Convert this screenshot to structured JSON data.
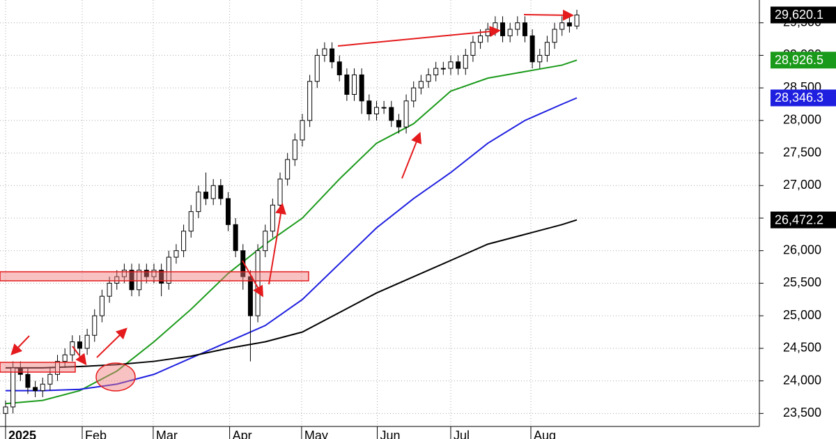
{
  "chart_data": {
    "type": "candlestick",
    "open": [
      23500,
      23600,
      24200,
      24100,
      23900,
      23850,
      23950,
      24100,
      24300,
      24400,
      24600,
      24500,
      24700,
      25000,
      25300,
      25500,
      25600,
      25700,
      25400,
      25700,
      25600,
      25700,
      25500,
      25900,
      26000,
      26300,
      26600,
      26900,
      26800,
      27000,
      26800,
      26400,
      26000,
      25600,
      25000,
      26000,
      26300,
      26700,
      27100,
      27400,
      27700,
      28000,
      28600,
      29000,
      29100,
      28900,
      28700,
      28400,
      28700,
      28300,
      28100,
      28200,
      28200,
      28000,
      27900,
      28300,
      28500,
      28600,
      28700,
      28800,
      28800,
      28900,
      28800,
      29000,
      29200,
      29300,
      29400,
      29500,
      29300,
      29400,
      29500,
      29300,
      28900,
      29000,
      29200,
      29400,
      29500,
      29450
    ],
    "high": [
      23700,
      24300,
      24300,
      24200,
      24000,
      24050,
      24200,
      24400,
      24500,
      24700,
      24700,
      24800,
      25100,
      25400,
      25600,
      25700,
      25800,
      25800,
      25800,
      25800,
      25800,
      25800,
      26000,
      26100,
      26400,
      26700,
      27000,
      27200,
      27100,
      27100,
      26900,
      26500,
      26100,
      25700,
      26100,
      26400,
      26800,
      27200,
      27500,
      27800,
      28100,
      28700,
      29100,
      29200,
      29200,
      29000,
      28800,
      28800,
      28800,
      28400,
      28300,
      28300,
      28300,
      28100,
      28400,
      28600,
      28700,
      28800,
      28900,
      28900,
      29000,
      29000,
      29100,
      29300,
      29400,
      29500,
      29600,
      29600,
      29500,
      29600,
      29600,
      29400,
      29100,
      29300,
      29500,
      29600,
      29600,
      29700
    ],
    "low": [
      23300,
      23500,
      24000,
      23800,
      23750,
      23750,
      23850,
      24000,
      24200,
      24300,
      24400,
      24400,
      24600,
      24900,
      25200,
      25400,
      25500,
      25300,
      25300,
      25500,
      25500,
      25300,
      25400,
      25800,
      25900,
      26200,
      26500,
      26700,
      26700,
      26700,
      26300,
      25900,
      25400,
      24300,
      24900,
      25900,
      26200,
      26600,
      27000,
      27300,
      27600,
      27900,
      28500,
      28900,
      28800,
      28600,
      28300,
      28300,
      28100,
      28000,
      28000,
      28100,
      27900,
      27800,
      27800,
      28200,
      28400,
      28500,
      28600,
      28700,
      28700,
      28700,
      28700,
      28900,
      29100,
      29200,
      29300,
      29200,
      29200,
      29300,
      29200,
      28800,
      28800,
      28900,
      29100,
      29300,
      29350,
      29400
    ],
    "close": [
      23600,
      24200,
      24100,
      23900,
      23850,
      23950,
      24100,
      24300,
      24400,
      24600,
      24500,
      24700,
      25000,
      25300,
      25500,
      25600,
      25700,
      25400,
      25700,
      25600,
      25700,
      25500,
      25900,
      26000,
      26300,
      26600,
      26900,
      26800,
      27000,
      26800,
      26400,
      26000,
      25600,
      25000,
      26000,
      26300,
      26700,
      27100,
      27400,
      27700,
      28000,
      28600,
      29000,
      29100,
      28900,
      28700,
      28400,
      28700,
      28300,
      28100,
      28200,
      28200,
      28000,
      27900,
      28300,
      28500,
      28600,
      28700,
      28800,
      28800,
      28900,
      28800,
      29000,
      29200,
      29300,
      29400,
      29500,
      29300,
      29400,
      29500,
      29300,
      28900,
      29000,
      29200,
      29400,
      29500,
      29450,
      29620.1
    ],
    "up_color": "#ffffff",
    "down_color": "#000000",
    "series": [
      {
        "color": "#1a9a1a",
        "x": [
          0,
          5,
          10,
          15,
          20,
          25,
          30,
          35,
          40,
          45,
          50,
          55,
          60,
          65,
          70,
          75,
          77
        ],
        "values": [
          23650,
          23700,
          23850,
          24150,
          24600,
          25100,
          25650,
          26100,
          26500,
          27100,
          27650,
          27950,
          28450,
          28650,
          28750,
          28850,
          28926.5
        ]
      },
      {
        "color": "#1f1fe0",
        "x": [
          0,
          5,
          10,
          15,
          20,
          25,
          30,
          35,
          40,
          45,
          50,
          55,
          60,
          65,
          70,
          75,
          77
        ],
        "values": [
          23850,
          23850,
          23870,
          23950,
          24100,
          24350,
          24600,
          24850,
          25250,
          25800,
          26350,
          26800,
          27200,
          27650,
          28000,
          28250,
          28346.3
        ]
      },
      {
        "color": "#000000",
        "x": [
          0,
          5,
          10,
          15,
          20,
          25,
          30,
          35,
          40,
          45,
          50,
          55,
          60,
          65,
          70,
          75,
          77
        ],
        "values": [
          24200,
          24200,
          24220,
          24250,
          24300,
          24380,
          24500,
          24600,
          24750,
          25050,
          25350,
          25600,
          25850,
          26100,
          26250,
          26400,
          26472.2
        ]
      }
    ],
    "price_labels": [
      {
        "value": 29620.1,
        "label": "29,620.1",
        "color": "#000000"
      },
      {
        "value": 28926.5,
        "label": "28,926.5",
        "color": "#1a9a1a"
      },
      {
        "value": 28346.3,
        "label": "28,346.3",
        "color": "#1f1fe0"
      },
      {
        "value": 26472.2,
        "label": "26,472.2",
        "color": "#000000"
      }
    ],
    "xlim": [
      -0.75,
      101.6
    ],
    "xticks": [
      {
        "value": 0,
        "label": "2025"
      },
      {
        "value": 10.33,
        "label": "Feb"
      },
      {
        "value": 19.9,
        "label": "Mar"
      },
      {
        "value": 30.2,
        "label": "Apr"
      },
      {
        "value": 39.9,
        "label": "May"
      },
      {
        "value": 50.1,
        "label": "Jun"
      },
      {
        "value": 60,
        "label": "Jul"
      },
      {
        "value": 70.8,
        "label": "Aug"
      }
    ],
    "ylim": [
      23300,
      29850
    ],
    "yticks": [
      {
        "value": 23500,
        "label": "23,500"
      },
      {
        "value": 24000,
        "label": "24,000"
      },
      {
        "value": 24500,
        "label": "24,500"
      },
      {
        "value": 25000,
        "label": "25,000"
      },
      {
        "value": 25500,
        "label": "25,500"
      },
      {
        "value": 26000,
        "label": "26,000"
      },
      {
        "value": 26500,
        "label": "26,500"
      },
      {
        "value": 27000,
        "label": "27,000"
      },
      {
        "value": 27500,
        "label": "27,500"
      },
      {
        "value": 28000,
        "label": "28,000"
      },
      {
        "value": 28500,
        "label": "28,500"
      },
      {
        "value": 29000,
        "label": "29,000"
      },
      {
        "value": 29500,
        "label": "29,500"
      }
    ],
    "grid": true
  }
}
